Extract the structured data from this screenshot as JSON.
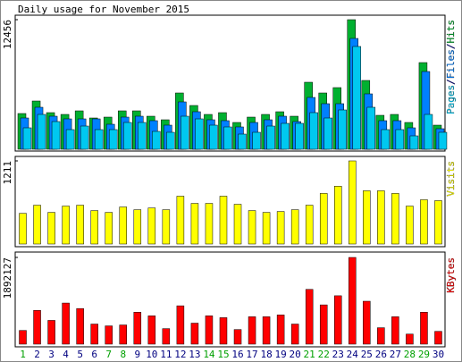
{
  "chart_data": [
    {
      "type": "bar",
      "title": "Daily usage for November 2015",
      "legend_separator": "/",
      "series": [
        {
          "name": "Hits",
          "color": "#00b030",
          "values": [
            3436,
            4639,
            3522,
            3350,
            3694,
            3007,
            3092,
            3694,
            3694,
            3178,
            2835,
            5412,
            4209,
            3350,
            3522,
            2577,
            3092,
            3350,
            3608,
            3178,
            6443,
            5412,
            5927,
            12456,
            6614,
            3264,
            3350,
            2577,
            8332,
            2319
          ]
        },
        {
          "name": "Files",
          "color": "#0080ff",
          "values": [
            3007,
            4037,
            3178,
            2921,
            2921,
            2921,
            2405,
            3092,
            3178,
            2749,
            2319,
            4553,
            3608,
            2835,
            2749,
            2148,
            2577,
            2835,
            3178,
            2663,
            4982,
            4381,
            4381,
            10652,
            5326,
            2749,
            2749,
            2062,
            7473,
            1976
          ]
        },
        {
          "name": "Pages",
          "color": "#00c8f0",
          "values": [
            2062,
            3350,
            2663,
            1890,
            2233,
            1890,
            1890,
            2577,
            2577,
            1718,
            1632,
            3178,
            2921,
            2319,
            2148,
            1460,
            1632,
            2233,
            2491,
            2491,
            3522,
            3007,
            3780,
            9879,
            4037,
            1890,
            1890,
            1289,
            3350,
            1632
          ]
        }
      ],
      "ylim": [
        0,
        12456
      ],
      "yticks": [
        12456
      ]
    },
    {
      "type": "bar",
      "series": [
        {
          "name": "Visits",
          "color": "#ffff00",
          "values": [
            447,
            566,
            461,
            553,
            566,
            487,
            461,
            540,
            500,
            526,
            500,
            697,
            592,
            592,
            697,
            579,
            487,
            461,
            474,
            500,
            566,
            737,
            842,
            1211,
            776,
            776,
            737,
            553,
            645,
            632
          ]
        }
      ],
      "ylim": [
        0,
        1211
      ],
      "yticks": [
        1211
      ]
    },
    {
      "type": "bar",
      "series": [
        {
          "name": "KBytes",
          "color": "#ff0000",
          "values": [
            298763,
            736929,
            517842,
            896265,
            776763,
            438174,
            398340,
            418257,
            697095,
            617427,
            338589,
            836514,
            458091,
            617427,
            577593,
            318672,
            597510,
            597510,
            637344,
            438174,
            1195020,
            856431,
            1055601,
            1892127,
            936099,
            358506,
            597510,
            219087,
            697095,
            278838
          ]
        }
      ],
      "ylim": [
        0,
        1892127
      ],
      "yticks": [
        1892127
      ],
      "categories": [
        "1",
        "2",
        "3",
        "4",
        "5",
        "6",
        "7",
        "8",
        "9",
        "10",
        "11",
        "12",
        "13",
        "14",
        "15",
        "16",
        "17",
        "18",
        "19",
        "20",
        "21",
        "22",
        "23",
        "24",
        "25",
        "26",
        "27",
        "28",
        "29",
        "30"
      ],
      "category_colors": [
        "#00a000",
        "#000080",
        "#000080",
        "#000080",
        "#000080",
        "#000080",
        "#00a000",
        "#00a000",
        "#000080",
        "#000080",
        "#000080",
        "#000080",
        "#000080",
        "#00a000",
        "#00a000",
        "#000080",
        "#000080",
        "#000080",
        "#000080",
        "#000080",
        "#00a000",
        "#00a000",
        "#000080",
        "#000080",
        "#000080",
        "#000080",
        "#000080",
        "#00a000",
        "#00a000",
        "#000080"
      ]
    }
  ]
}
